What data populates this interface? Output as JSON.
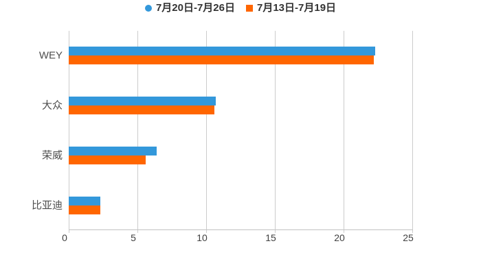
{
  "chart_data": {
    "type": "bar",
    "orientation": "horizontal",
    "title": "",
    "xlabel": "",
    "ylabel": "",
    "categories": [
      "WEY",
      "大众",
      "荣威",
      "比亚迪"
    ],
    "series": [
      {
        "name": "7月20日-7月26日",
        "color": "#3398db",
        "marker": "circle",
        "values": [
          22.3,
          10.7,
          6.4,
          2.3
        ]
      },
      {
        "name": "7月13日-7月19日",
        "color": "#ff6600",
        "marker": "square",
        "values": [
          22.2,
          10.6,
          5.6,
          2.3
        ]
      }
    ],
    "x_ticks": [
      0,
      5,
      10,
      15,
      20,
      25
    ],
    "xlim": [
      0,
      25
    ],
    "grid": true,
    "legend_position": "top",
    "grid_color": "#cccccc",
    "axis_line_color": "#c2c2c2",
    "x_label_color": "#404040",
    "y_label_color": "#4d4d4d",
    "legend_text_color": "#333333",
    "background_color": "#ffffff"
  }
}
